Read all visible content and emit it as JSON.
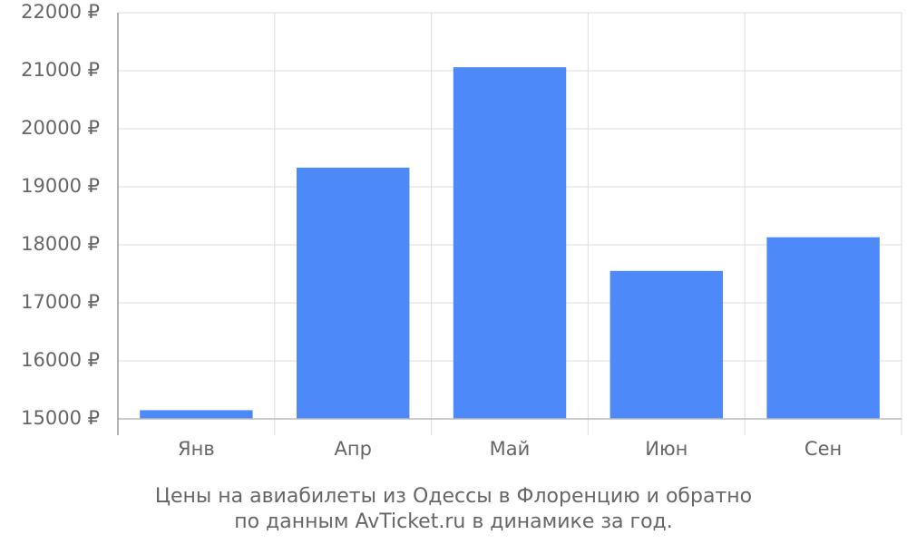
{
  "chart_data": {
    "type": "bar",
    "categories": [
      "Янв",
      "Апр",
      "Май",
      "Июн",
      "Сен"
    ],
    "values": [
      15150,
      19330,
      21060,
      17550,
      18130
    ],
    "color": "#4d89f9",
    "ylim": [
      15000,
      22000
    ],
    "yticks": [
      {
        "value": 15000,
        "label": "15000 ₽"
      },
      {
        "value": 16000,
        "label": "16000 ₽"
      },
      {
        "value": 17000,
        "label": "17000 ₽"
      },
      {
        "value": 18000,
        "label": "18000 ₽"
      },
      {
        "value": 19000,
        "label": "19000 ₽"
      },
      {
        "value": 20000,
        "label": "20000 ₽"
      },
      {
        "value": 21000,
        "label": "21000 ₽"
      },
      {
        "value": 22000,
        "label": "22000 ₽"
      }
    ],
    "grid": true,
    "caption": [
      "Цены на авиабилеты из Одессы в Флоренцию и обратно",
      "по данным AvTicket.ru в динамике за год."
    ]
  }
}
